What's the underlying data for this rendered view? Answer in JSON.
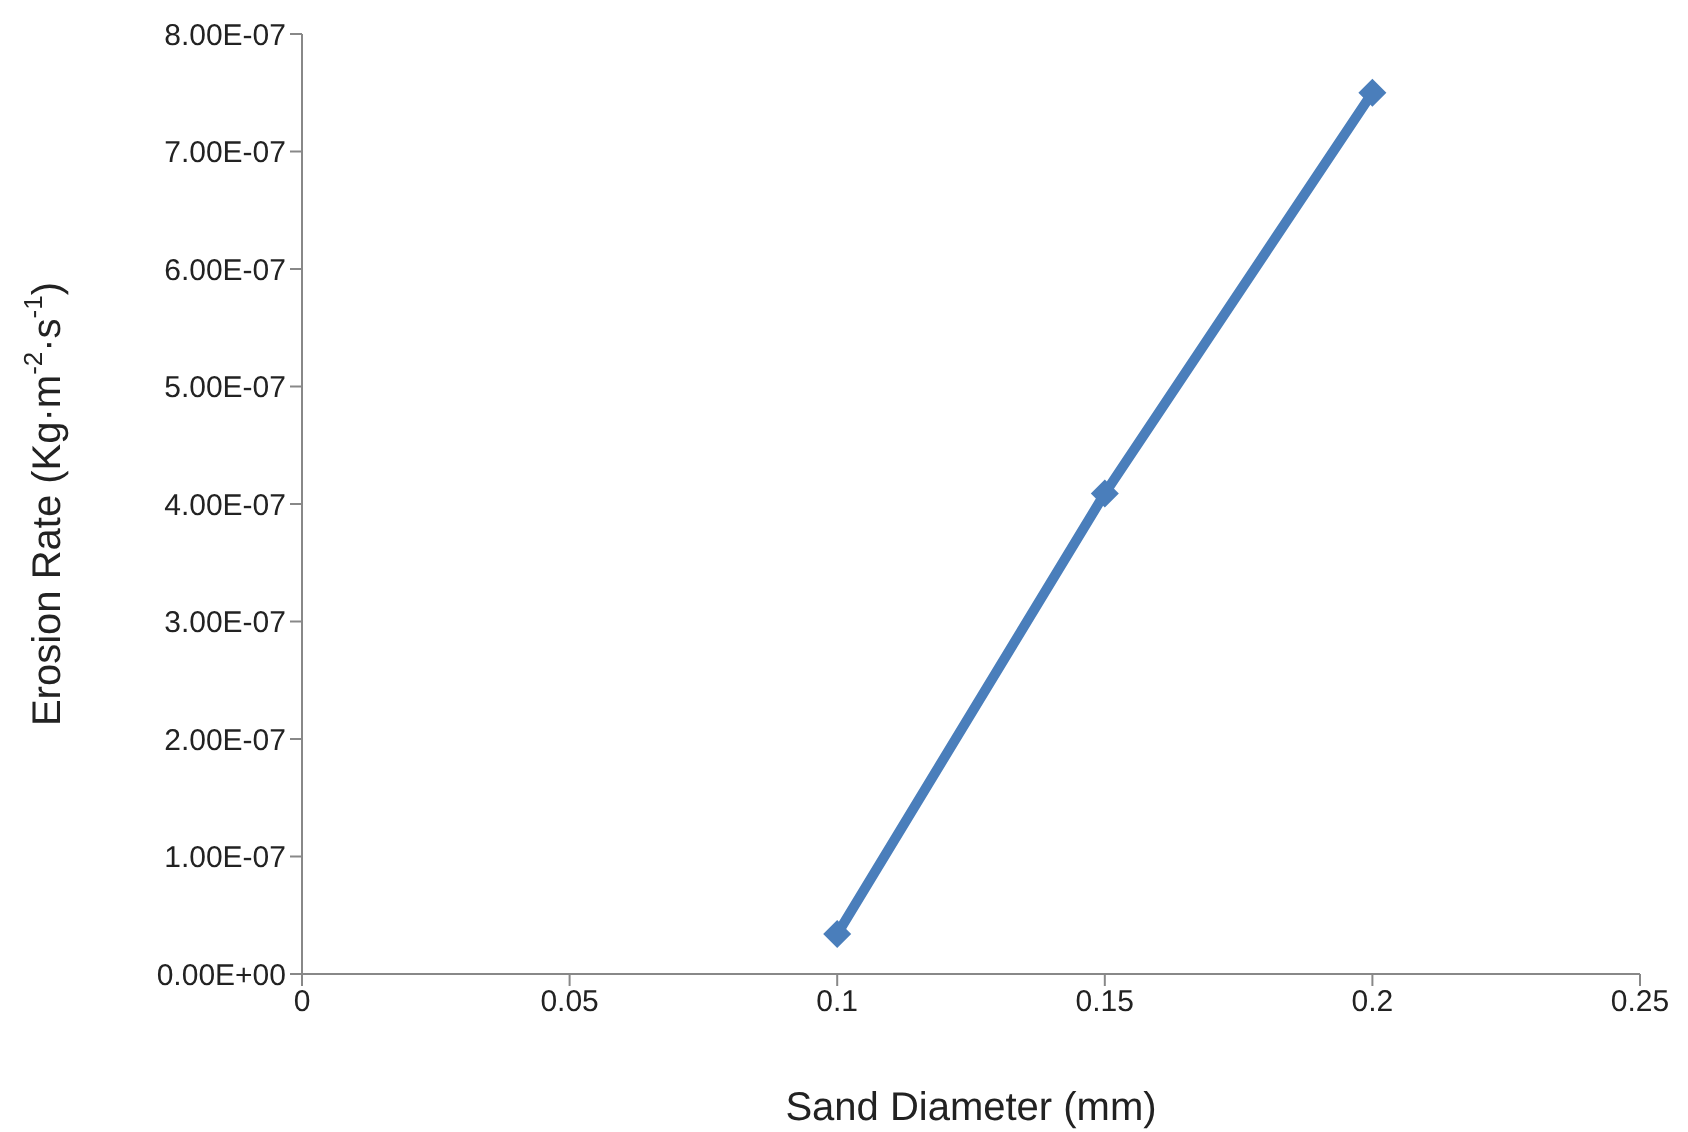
{
  "chart_data": {
    "type": "line",
    "xlabel": "Sand Diameter (mm)",
    "ylabel": "Erosion Rate (Kg·m$^{-2}$·s$^{-1}$)",
    "x": [
      0.1,
      0.15,
      0.2
    ],
    "series": [
      {
        "color": "#4a7ebb",
        "values": [
          3.4e-08,
          4.09e-07,
          7.5e-07
        ]
      }
    ],
    "xlim": [
      0,
      0.25
    ],
    "xticks": [
      0,
      0.05,
      0.1,
      0.15,
      0.2,
      0.25
    ],
    "ylim": [
      0,
      8e-07
    ],
    "yticks": [
      {
        "value": 0,
        "label": "0.00E+00"
      },
      {
        "value": 1e-07,
        "label": "1.00E-07"
      },
      {
        "value": 2e-07,
        "label": "2.00E-07"
      },
      {
        "value": 3e-07,
        "label": "3.00E-07"
      },
      {
        "value": 4e-07,
        "label": "4.00E-07"
      },
      {
        "value": 5e-07,
        "label": "5.00E-07"
      },
      {
        "value": 6e-07,
        "label": "6.00E-07"
      },
      {
        "value": 7e-07,
        "label": "7.00E-07"
      },
      {
        "value": 8e-07,
        "label": "8.00E-07"
      }
    ],
    "grid": false,
    "legend": false,
    "marker": "diamond",
    "line_style": "solid"
  }
}
